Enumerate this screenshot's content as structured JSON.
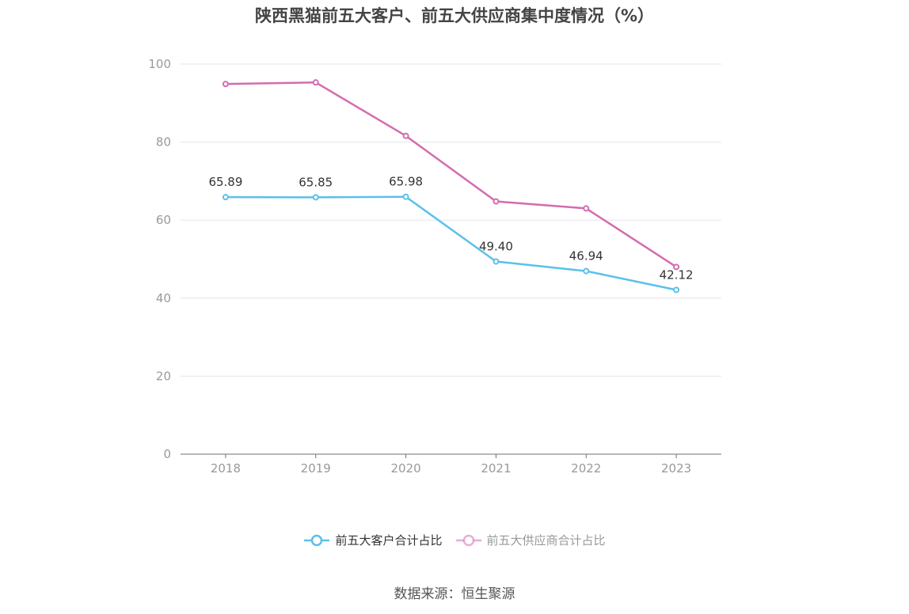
{
  "source_text": "数据来源：恒生聚源",
  "chart_data": {
    "type": "line",
    "title": "陕西黑猫前五大客户、前五大供应商集中度情况（%）",
    "categories": [
      "2018",
      "2019",
      "2020",
      "2021",
      "2022",
      "2023"
    ],
    "ylim": [
      0,
      100
    ],
    "yticks": [
      0,
      20,
      40,
      60,
      80,
      100
    ],
    "grid": true,
    "legend_position": "bottom",
    "series": [
      {
        "name": "前五大客户合计占比",
        "color": "#5bc0eb",
        "values": [
          65.89,
          65.85,
          65.98,
          49.4,
          46.94,
          42.12
        ],
        "labels": [
          "65.89",
          "65.85",
          "65.98",
          "49.40",
          "46.94",
          "42.12"
        ]
      },
      {
        "name": "前五大供应商合计占比",
        "color": "#d36cb0",
        "values": [
          94.9,
          95.3,
          81.6,
          64.8,
          63.0,
          48.0
        ],
        "labels": []
      }
    ]
  }
}
